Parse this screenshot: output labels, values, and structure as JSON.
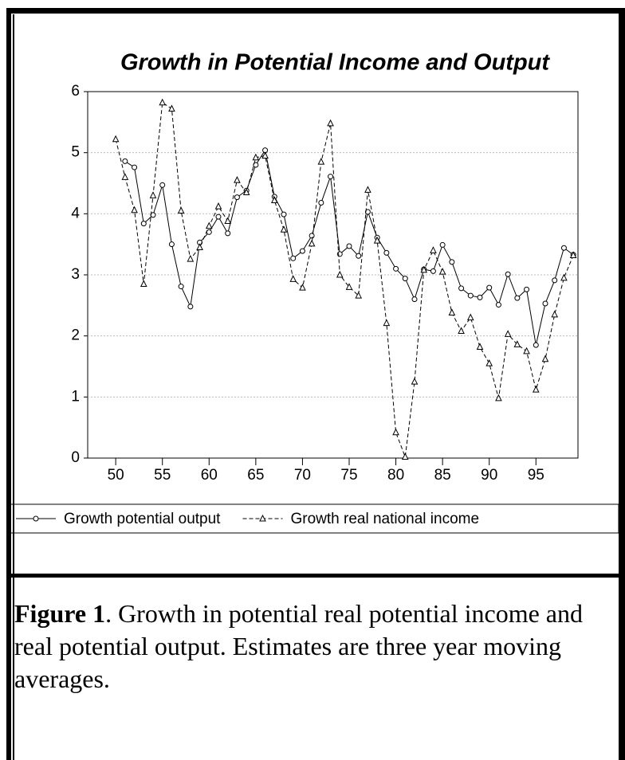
{
  "chart_data": {
    "type": "line",
    "title": "Growth in Potential Income and Output",
    "x": [
      50,
      51,
      52,
      53,
      54,
      55,
      56,
      57,
      58,
      59,
      60,
      61,
      62,
      63,
      64,
      65,
      66,
      67,
      68,
      69,
      70,
      71,
      72,
      73,
      74,
      75,
      76,
      77,
      78,
      79,
      80,
      81,
      82,
      83,
      84,
      85,
      86,
      87,
      88,
      89,
      90,
      91,
      92,
      93,
      94,
      95,
      96,
      97,
      98,
      99
    ],
    "series": [
      {
        "name": "Growth potential output",
        "color": "#000000",
        "line_style": "solid",
        "marker": "circle",
        "values": [
          null,
          4.86,
          4.76,
          3.84,
          3.98,
          4.47,
          3.5,
          2.81,
          2.48,
          3.53,
          3.7,
          3.95,
          3.68,
          4.27,
          4.38,
          4.8,
          5.04,
          4.28,
          3.99,
          3.27,
          3.39,
          3.64,
          4.18,
          4.61,
          3.34,
          3.47,
          3.31,
          4.03,
          3.61,
          3.36,
          3.1,
          2.94,
          2.6,
          3.09,
          3.06,
          3.49,
          3.21,
          2.78,
          2.66,
          2.63,
          2.79,
          2.51,
          3.01,
          2.62,
          2.76,
          1.85,
          2.53,
          2.91,
          3.44,
          3.33
        ]
      },
      {
        "name": "Growth real national income",
        "color": "#000000",
        "line_style": "dashed",
        "marker": "triangle",
        "values": [
          5.22,
          4.6,
          4.06,
          2.85,
          4.3,
          5.82,
          5.72,
          4.05,
          3.26,
          3.45,
          3.8,
          4.12,
          3.88,
          4.55,
          4.35,
          4.92,
          4.95,
          4.22,
          3.74,
          2.93,
          2.79,
          3.51,
          4.85,
          5.48,
          3.0,
          2.8,
          2.66,
          4.39,
          3.56,
          2.21,
          0.42,
          0.02,
          1.25,
          3.08,
          3.4,
          3.05,
          2.38,
          2.08,
          2.3,
          1.82,
          1.55,
          0.98,
          2.03,
          1.86,
          1.75,
          1.12,
          1.62,
          2.35,
          2.95,
          3.32
        ]
      }
    ],
    "xlim": [
      47,
      99.5
    ],
    "xticks": [
      50,
      55,
      60,
      65,
      70,
      75,
      80,
      85,
      90,
      95
    ],
    "ylim": [
      0,
      6
    ],
    "yticks": [
      0,
      1,
      2,
      3,
      4,
      5,
      6
    ],
    "grid": true,
    "legend": "bottom"
  },
  "caption": {
    "label": "Figure 1",
    "text": ". Growth in potential real potential income and real potential output. Estimates are three year moving averages."
  }
}
